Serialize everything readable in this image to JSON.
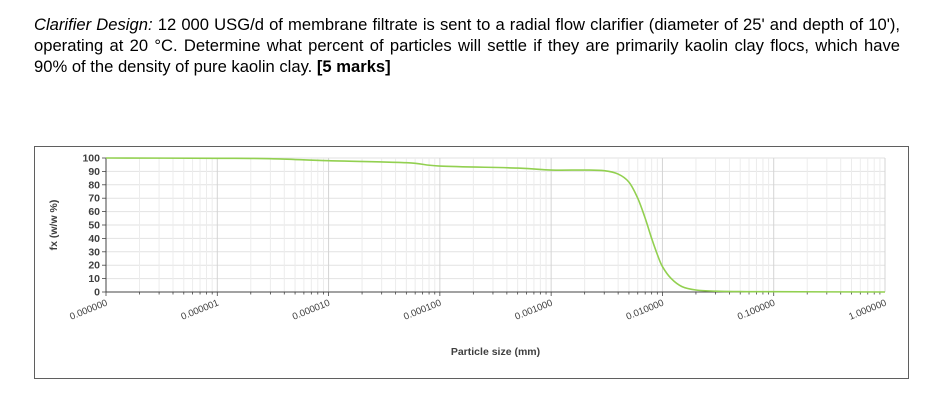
{
  "question": {
    "lead": "Clarifier Design:",
    "body": " 12 000 USG/d of membrane filtrate is sent to a radial flow clarifier (diameter of 25' and depth of 10'), operating at 20 °C. Determine what percent of particles will settle if they are primarily kaolin clay flocs, which have 90% of the density of pure kaolin clay.",
    "marks": "[5 marks]"
  },
  "chart_data": {
    "type": "line",
    "title": "",
    "xlabel": "Particle size (mm)",
    "ylabel": "fx (w/w %)",
    "x_scale": "log",
    "xlim": [
      1e-07,
      1
    ],
    "ylim": [
      0,
      100
    ],
    "x_tick_values": [
      1e-07,
      1e-06,
      1e-05,
      0.0001,
      0.001,
      0.01,
      0.1,
      1
    ],
    "x_tick_labels": [
      "0.000000",
      "0.000001",
      "0.000010",
      "0.000100",
      "0.001000",
      "0.010000",
      "0.100000",
      "1.000000"
    ],
    "y_ticks": [
      0,
      10,
      20,
      30,
      40,
      50,
      60,
      70,
      80,
      90,
      100
    ],
    "grid": true,
    "line_color": "#92d050",
    "series": [
      {
        "name": "",
        "x": [
          1e-07,
          1e-06,
          3e-06,
          1e-05,
          5e-05,
          0.0001,
          0.0005,
          0.001,
          0.002,
          0.003,
          0.004,
          0.005,
          0.006,
          0.007,
          0.008,
          0.009,
          0.01,
          0.012,
          0.015,
          0.02,
          0.03,
          0.05,
          0.1,
          1
        ],
        "y": [
          100,
          99.8,
          99.5,
          98,
          96.5,
          94,
          92.5,
          91,
          91,
          90.5,
          88,
          82,
          70,
          55,
          40,
          28,
          19,
          10,
          4,
          1.5,
          0.6,
          0.3,
          0.2,
          0
        ]
      }
    ]
  }
}
